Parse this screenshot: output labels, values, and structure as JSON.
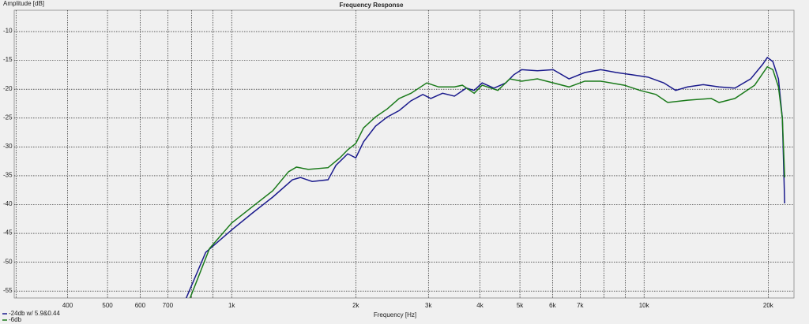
{
  "chart_data": {
    "type": "line",
    "title": "Frequency Response",
    "y_label": "Amplitude [dB]",
    "x_label": "Frequency [Hz]",
    "log_x": true,
    "grid": true,
    "xlim": [
      297,
      23100
    ],
    "ylim": [
      -56.2,
      -6.3
    ],
    "yticks": [
      -10,
      -15,
      -20,
      -25,
      -30,
      -35,
      -40,
      -45,
      -50,
      -55
    ],
    "xticks": [
      400,
      500,
      600,
      700,
      {
        "value": 1000,
        "label": "1k"
      },
      {
        "value": 2000,
        "label": "2k"
      },
      {
        "value": 3000,
        "label": "3k"
      },
      {
        "value": 4000,
        "label": "4k"
      },
      {
        "value": 5000,
        "label": "5k"
      },
      {
        "value": 6000,
        "label": "6k"
      },
      {
        "value": 7000,
        "label": "7k"
      },
      {
        "value": 10000,
        "label": "10k"
      },
      {
        "value": 20000,
        "label": "20k"
      }
    ],
    "xminor": [
      300,
      800,
      900,
      8000,
      9000
    ],
    "series": [
      {
        "name": "-24db w/ 5.9&0.44",
        "color": "#1a1a8c",
        "x": [
          774,
          865,
          1000,
          1126,
          1258,
          1404,
          1468,
          1568,
          1713,
          1790,
          1912,
          2000,
          2089,
          2233,
          2385,
          2548,
          2722,
          2908,
          3040,
          3247,
          3469,
          3707,
          3874,
          4050,
          4325,
          4622,
          4830,
          5049,
          5513,
          6021,
          6577,
          7183,
          7845,
          8570,
          9361,
          10223,
          11167,
          11929,
          12750,
          13925,
          15205,
          16610,
          18140,
          19383,
          19905,
          20530,
          21180,
          21645,
          21930
        ],
        "values": [
          -56.4,
          -48.3,
          -44.4,
          -41.4,
          -38.7,
          -35.7,
          -35.3,
          -36.0,
          -35.7,
          -33.2,
          -31.2,
          -31.9,
          -29.1,
          -26.4,
          -24.8,
          -23.7,
          -22.0,
          -20.9,
          -21.6,
          -20.7,
          -21.2,
          -19.8,
          -20.2,
          -18.9,
          -19.8,
          -18.9,
          -17.5,
          -16.6,
          -16.8,
          -16.6,
          -18.2,
          -17.1,
          -16.6,
          -17.1,
          -17.5,
          -17.9,
          -18.9,
          -20.2,
          -19.6,
          -19.2,
          -19.6,
          -19.8,
          -18.2,
          -15.7,
          -14.5,
          -15.2,
          -18.2,
          -25.0,
          -39.8
        ]
      },
      {
        "name": "-6db",
        "color": "#1a7a1a",
        "x": [
          791,
          884,
          1000,
          1126,
          1258,
          1374,
          1436,
          1534,
          1713,
          1830,
          1912,
          2000,
          2089,
          2233,
          2385,
          2548,
          2722,
          2973,
          3177,
          3469,
          3626,
          3874,
          4050,
          4422,
          4724,
          5049,
          5513,
          6021,
          6577,
          7183,
          7845,
          8957,
          9781,
          10684,
          11415,
          12750,
          14550,
          15205,
          16610,
          18545,
          19905,
          20530,
          21180,
          21645,
          21930
        ],
        "values": [
          -56.4,
          -47.6,
          -43.2,
          -40.3,
          -37.6,
          -34.3,
          -33.5,
          -33.9,
          -33.6,
          -31.9,
          -30.5,
          -29.4,
          -26.7,
          -24.8,
          -23.4,
          -21.6,
          -20.7,
          -18.9,
          -19.6,
          -19.6,
          -19.3,
          -20.7,
          -19.3,
          -20.2,
          -18.2,
          -18.6,
          -18.2,
          -18.9,
          -19.6,
          -18.6,
          -18.6,
          -19.3,
          -20.2,
          -20.9,
          -22.3,
          -21.9,
          -21.6,
          -22.3,
          -21.6,
          -19.3,
          -16.1,
          -16.6,
          -19.6,
          -25.0,
          -35.3
        ]
      }
    ]
  }
}
